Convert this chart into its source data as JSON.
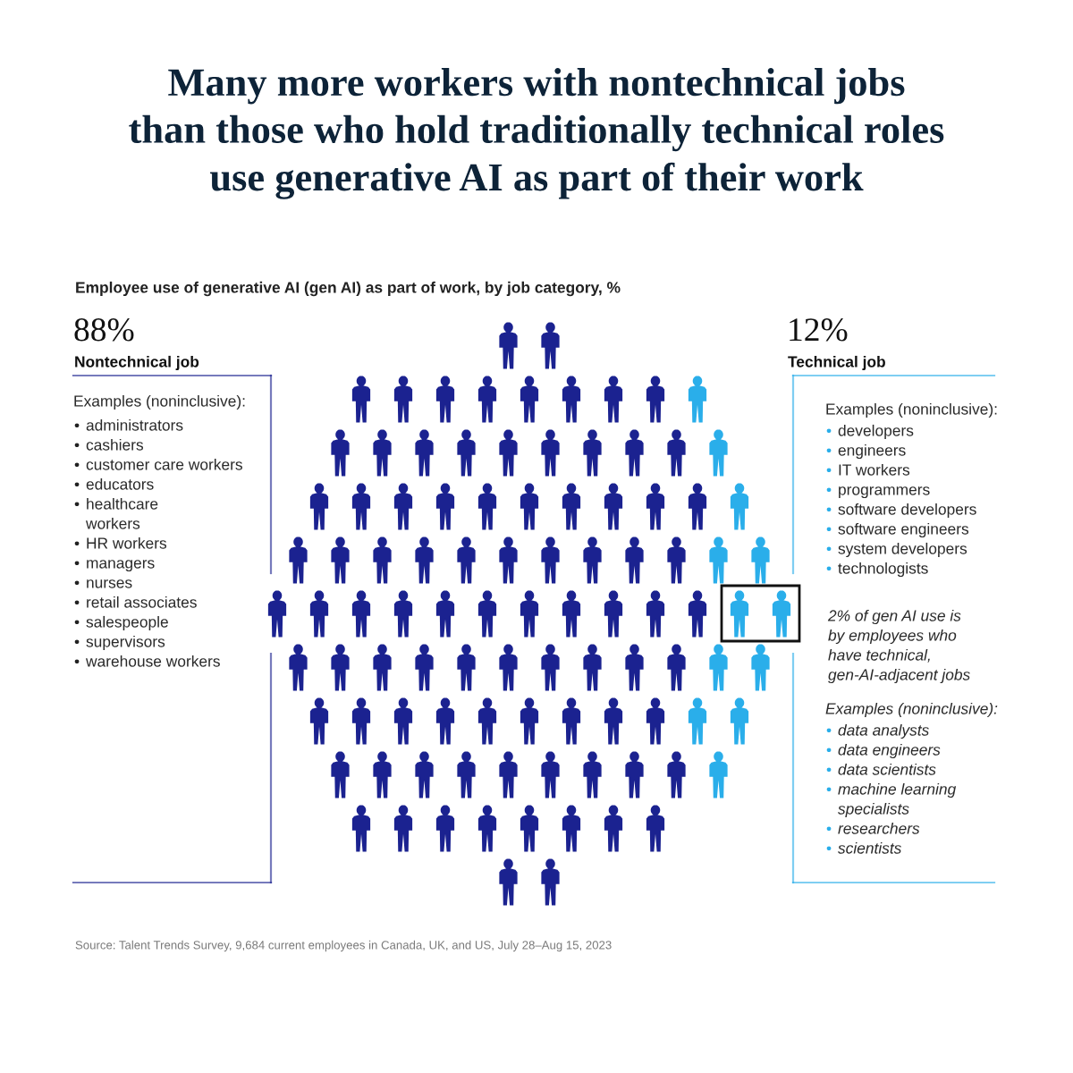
{
  "chart_data": {
    "type": "other",
    "title": "Many more workers with nontechnical jobs\nthan those who hold traditionally technical roles\nuse generative AI as part of their work",
    "subtitle": "Employee use of generative AI (gen AI) as part of work, by job category, %",
    "categories": [
      "Nontechnical job",
      "Technical job"
    ],
    "values": [
      88,
      12
    ],
    "value_labels": [
      "88%",
      "12%"
    ],
    "colors": [
      "#1b2290",
      "#2aaeea"
    ],
    "annotations": [
      "Examples (noninclusive):\n• administrators\n• cashiers\n• customer care workers\n• educators\n• healthcare\nworkers\n• HR workers\n• managers\n• nurses\n• retail associates\n• salespeople\n• supervisors\n• warehouse workers",
      "Examples (noninclusive):\n• developers\n• engineers\n• IT workers\n• programmers\n• software developers\n• software engineers\n• system developers\n• technologists",
      "2% of gen AI use is\nby employees who\nhave technical,\ngen-AI-adjacent jobs",
      "Examples (noninclusive):\n• data analysts\n• data engineers\n• data scientists\n• machine learning\nspecialists\n• researchers\n• scientists",
      "Source: Talent Trends Survey, 9,684 current employees in Canada, UK, and US, July 28–Aug 15, 2023"
    ]
  }
}
